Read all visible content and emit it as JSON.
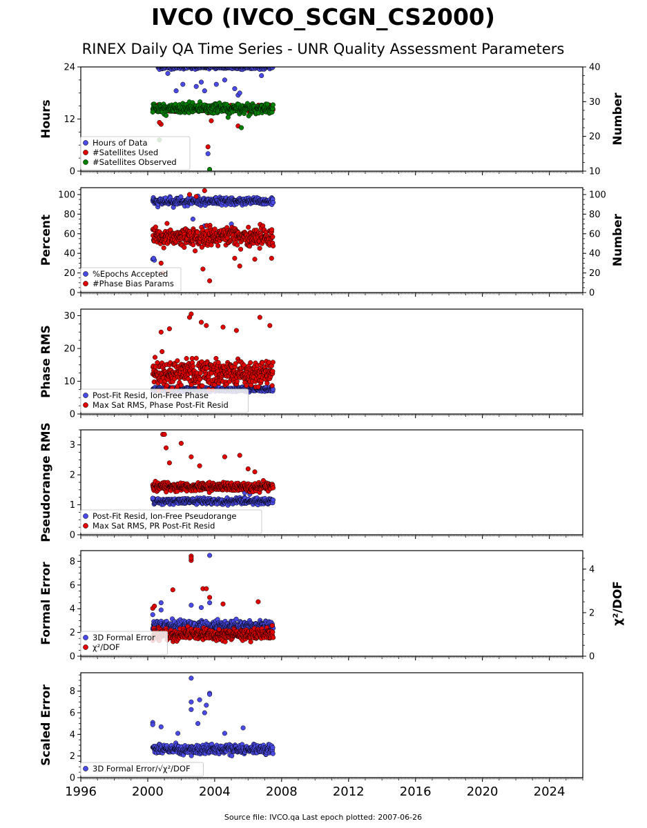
{
  "header": {
    "title": "IVCO (IVCO_SCGN_CS2000)",
    "subtitle": "RINEX Daily QA Time Series - UNR Quality Assessment Parameters"
  },
  "footer": {
    "source": "Source file: IVCO.qa Last epoch plotted: 2007-06-26"
  },
  "colors": {
    "blue": "#4a4ae6",
    "red": "#e00000",
    "green": "#008000",
    "edge": "#000000"
  },
  "chart_data": [
    {
      "type": "scatter",
      "name": "hours-panel",
      "ylabel": "Hours",
      "ylabel_right": "Number",
      "xlim": [
        1996,
        2026
      ],
      "ylim": [
        0,
        24
      ],
      "yticks": [
        "0",
        "12",
        "24"
      ],
      "ylim_right": [
        10,
        40
      ],
      "yticks_right": [
        "10",
        "20",
        "30",
        "40"
      ],
      "legend": [
        {
          "label": "Hours of Data",
          "color": "#4a4ae6"
        },
        {
          "label": "#Satellites Used",
          "color": "#e00000"
        },
        {
          "label": "#Satellites Observed",
          "color": "#008000"
        }
      ],
      "series": [
        {
          "name": "Hours of Data",
          "axis": "left",
          "x_start": 2000.6,
          "x_end": 2007.49,
          "center": 24,
          "spread": 0.4,
          "outliers": [
            [
              2001.7,
              18.5
            ],
            [
              2002.1,
              20
            ],
            [
              2002.9,
              19.5
            ],
            [
              2003.2,
              20.5
            ],
            [
              2003.4,
              18.5
            ],
            [
              2003.6,
              4
            ],
            [
              2003.7,
              15
            ],
            [
              2004.1,
              20
            ],
            [
              2004.6,
              21
            ],
            [
              2005.2,
              19
            ],
            [
              2005.4,
              17.5
            ],
            [
              2005.5,
              18
            ],
            [
              2006.8,
              22
            ],
            [
              2001.2,
              22.5
            ]
          ]
        },
        {
          "name": "#Satellites Used",
          "axis": "right",
          "x_start": 2000.6,
          "x_end": 2007.49,
          "center": 28,
          "spread": 0.8,
          "outliers": [
            [
              2000.8,
              23.5
            ],
            [
              2003.6,
              17
            ],
            [
              2003.8,
              24.5
            ],
            [
              2005.4,
              23
            ],
            [
              2000.7,
              24
            ]
          ]
        },
        {
          "name": "#Satellites Observed",
          "axis": "right",
          "x_start": 2000.3,
          "x_end": 2007.49,
          "center": 28,
          "spread": 1.2,
          "outliers": [
            [
              2000.3,
              27
            ],
            [
              2000.7,
              19
            ],
            [
              2003.7,
              10.5
            ],
            [
              2005.6,
              22.5
            ],
            [
              2004.8,
              25.5
            ]
          ]
        }
      ]
    },
    {
      "type": "scatter",
      "name": "percent-panel",
      "ylabel": "Percent",
      "ylabel_right": "Number",
      "xlim": [
        1996,
        2026
      ],
      "ylim": [
        0,
        107
      ],
      "yticks": [
        "0",
        "20",
        "40",
        "60",
        "80",
        "100"
      ],
      "ylim_right": [
        0,
        107
      ],
      "yticks_right": [
        "0",
        "20",
        "40",
        "60",
        "80",
        "100"
      ],
      "legend": [
        {
          "label": "%Epochs Accepted",
          "color": "#4a4ae6"
        },
        {
          "label": "#Phase Bias Params",
          "color": "#e00000"
        }
      ],
      "series": [
        {
          "name": "%Epochs Accepted",
          "axis": "left",
          "x_start": 2000.3,
          "x_end": 2007.49,
          "center": 93,
          "spread": 3,
          "outliers": [
            [
              2000.3,
              34
            ],
            [
              2000.4,
              33
            ],
            [
              2000.35,
              35
            ],
            [
              2005.0,
              70
            ],
            [
              2003.4,
              68
            ],
            [
              2002.7,
              75
            ]
          ]
        },
        {
          "name": "#Phase Bias Params",
          "axis": "right",
          "x_start": 2000.3,
          "x_end": 2007.49,
          "center": 57,
          "spread": 8,
          "outliers": [
            [
              2003.4,
              104
            ],
            [
              2003.7,
              12
            ],
            [
              2003.3,
              24
            ],
            [
              2000.9,
              20
            ],
            [
              2005.5,
              27
            ],
            [
              2002.5,
              100
            ],
            [
              2002.9,
              98
            ],
            [
              2000.8,
              30
            ],
            [
              2005.2,
              35
            ],
            [
              2006.4,
              34
            ],
            [
              2007.4,
              35
            ]
          ]
        }
      ]
    },
    {
      "type": "scatter",
      "name": "phase-rms-panel",
      "ylabel": "Phase RMS",
      "xlim": [
        1996,
        2026
      ],
      "ylim": [
        0,
        32
      ],
      "yticks": [
        "0",
        "10",
        "20",
        "30"
      ],
      "legend": [
        {
          "label": "Post-Fit Resid, Ion-Free Phase",
          "color": "#4a4ae6"
        },
        {
          "label": "Max Sat RMS, Phase Post-Fit Resid",
          "color": "#e00000"
        }
      ],
      "series": [
        {
          "name": "Post-Fit Resid, Ion-Free Phase",
          "axis": "left",
          "x_start": 2000.3,
          "x_end": 2007.49,
          "center": 7.5,
          "spread": 0.6,
          "outliers": []
        },
        {
          "name": "Max Sat RMS, Phase Post-Fit Resid",
          "axis": "left",
          "x_start": 2000.3,
          "x_end": 2007.49,
          "center": 12.5,
          "spread": 3.5,
          "outliers": [
            [
              2002.6,
              30.5
            ],
            [
              2002.5,
              29.5
            ],
            [
              2006.7,
              29.5
            ],
            [
              2003.2,
              28
            ],
            [
              2003.5,
              27
            ],
            [
              2007.3,
              27
            ],
            [
              2001.3,
              26
            ],
            [
              2000.8,
              25
            ],
            [
              2004.5,
              26.5
            ],
            [
              2005.3,
              25.5
            ]
          ]
        }
      ]
    },
    {
      "type": "scatter",
      "name": "pseudorange-rms-panel",
      "ylabel": "Pseudorange RMS",
      "xlim": [
        1996,
        2026
      ],
      "ylim": [
        0,
        3.5
      ],
      "yticks": [
        "0",
        "1",
        "2",
        "3"
      ],
      "legend": [
        {
          "label": "Post-Fit Resid, Ion-Free Pseudorange",
          "color": "#4a4ae6"
        },
        {
          "label": "Max Sat RMS, PR Post-Fit Resid",
          "color": "#e00000"
        }
      ],
      "series": [
        {
          "name": "Post-Fit Resid, Ion-Free Pseudorange",
          "axis": "left",
          "x_start": 2000.3,
          "x_end": 2007.49,
          "center": 1.12,
          "spread": 0.08,
          "outliers": [
            [
              2000.3,
              1.22
            ],
            [
              2005.8,
              1.4
            ],
            [
              2006.1,
              1.35
            ]
          ]
        },
        {
          "name": "Max Sat RMS, PR Post-Fit Resid",
          "axis": "left",
          "x_start": 2000.3,
          "x_end": 2007.49,
          "center": 1.6,
          "spread": 0.12,
          "outliers": [
            [
              2000.9,
              3.35
            ],
            [
              2001.0,
              3.35
            ],
            [
              2001.1,
              2.9
            ],
            [
              2002.0,
              3.05
            ],
            [
              2002.6,
              2.6
            ],
            [
              2003.1,
              2.3
            ],
            [
              2004.6,
              2.6
            ],
            [
              2005.5,
              2.65
            ],
            [
              2006.0,
              2.2
            ],
            [
              2006.4,
              2.1
            ],
            [
              2001.3,
              2.4
            ]
          ]
        }
      ]
    },
    {
      "type": "scatter",
      "name": "formal-error-panel",
      "ylabel": "Formal Error",
      "ylabel_right": "χ²/DOF",
      "xlim": [
        1996,
        2026
      ],
      "ylim": [
        0,
        8.9
      ],
      "yticks": [
        "0",
        "2",
        "4",
        "6",
        "8"
      ],
      "ylim_right": [
        0,
        4.85
      ],
      "yticks_right": [
        "0",
        "2",
        "4"
      ],
      "legend": [
        {
          "label": "3D Formal Error",
          "color": "#4a4ae6"
        },
        {
          "label": "χ²/DOF",
          "color": "#e00000"
        }
      ],
      "series": [
        {
          "name": "3D Formal Error",
          "axis": "left",
          "x_start": 2000.3,
          "x_end": 2007.49,
          "center": 2.6,
          "spread": 0.35,
          "outliers": [
            [
              2003.7,
              8.5
            ],
            [
              2000.3,
              3.5
            ],
            [
              2000.8,
              4.5
            ],
            [
              2002.6,
              4.3
            ],
            [
              2003.2,
              4.1
            ],
            [
              2003.7,
              4.5
            ],
            [
              2000.8,
              3.9
            ]
          ]
        },
        {
          "name": "χ²/DOF",
          "axis": "right",
          "x_start": 2000.3,
          "x_end": 2007.49,
          "center": 1.0,
          "spread": 0.22,
          "outliers": [
            [
              2002.6,
              4.6
            ],
            [
              2002.6,
              4.4
            ],
            [
              2002.6,
              4.5
            ],
            [
              2003.3,
              3.1
            ],
            [
              2003.5,
              3.1
            ],
            [
              2003.7,
              2.7
            ],
            [
              2001.5,
              3.05
            ],
            [
              2000.3,
              2.2
            ],
            [
              2000.4,
              2.3
            ],
            [
              2004.5,
              2.4
            ],
            [
              2006.6,
              2.5
            ]
          ]
        }
      ]
    },
    {
      "type": "scatter",
      "name": "scaled-error-panel",
      "ylabel": "Scaled Error",
      "xlim": [
        1996,
        2026
      ],
      "ylim": [
        0,
        9.7
      ],
      "yticks": [
        "0",
        "2",
        "4",
        "6",
        "8"
      ],
      "xticks": [
        "1996",
        "2000",
        "2004",
        "2008",
        "2012",
        "2016",
        "2020",
        "2024"
      ],
      "legend": [
        {
          "label": "3D Formal Error/√χ²/DOF",
          "color": "#4a4ae6"
        }
      ],
      "series": [
        {
          "name": "3D Formal Error/√χ²/DOF",
          "axis": "left",
          "x_start": 2000.3,
          "x_end": 2007.49,
          "center": 2.6,
          "spread": 0.35,
          "outliers": [
            [
              2002.6,
              9.2
            ],
            [
              2003.7,
              7.8
            ],
            [
              2003.7,
              7.7
            ],
            [
              2002.6,
              7.0
            ],
            [
              2003.1,
              7.2
            ],
            [
              2003.5,
              6.7
            ],
            [
              2002.6,
              6.3
            ],
            [
              2003.4,
              6.0
            ],
            [
              2000.3,
              5.1
            ],
            [
              2000.3,
              4.9
            ],
            [
              2000.8,
              4.7
            ],
            [
              2005.7,
              4.6
            ],
            [
              2004.6,
              4.1
            ],
            [
              2001.8,
              4.1
            ],
            [
              2003.0,
              5.0
            ]
          ]
        }
      ]
    }
  ]
}
